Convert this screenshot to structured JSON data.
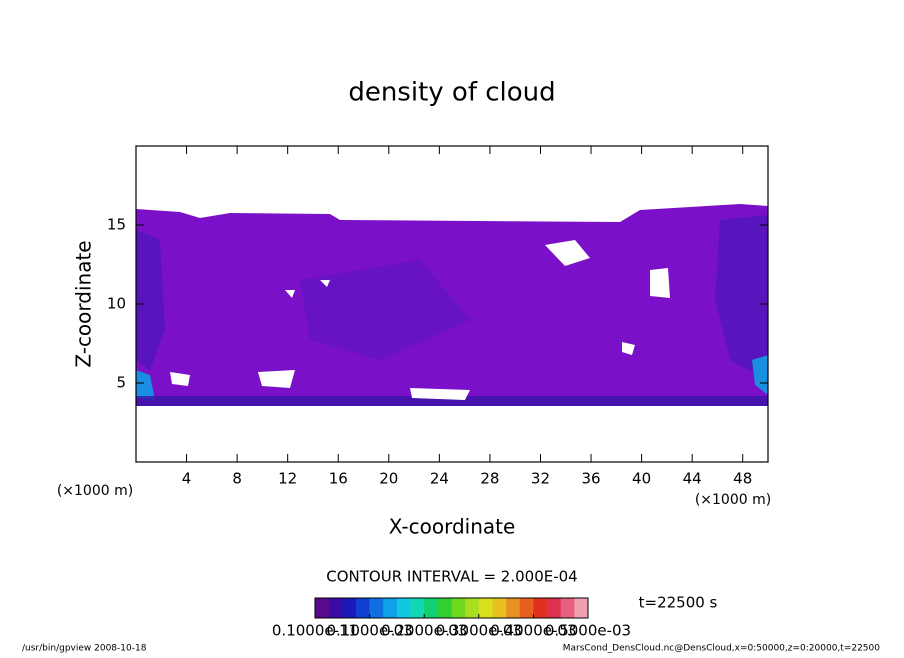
{
  "chart_data": {
    "type": "contour",
    "title": "density of cloud",
    "xlabel": "X-coordinate",
    "ylabel": "Z-coordinate",
    "x_unit": "(×1000 m)",
    "y_unit": "(×1000 m)",
    "xlim": [
      0,
      50
    ],
    "ylim": [
      0,
      20
    ],
    "xticks": [
      4,
      8,
      12,
      16,
      20,
      24,
      28,
      32,
      36,
      40,
      44,
      48
    ],
    "yticks": [
      5,
      10,
      15
    ],
    "contour_interval": "CONTOUR INTERVAL = 2.000E-04",
    "time_label": "t=22500 s",
    "clim": [
      0,
      0.0005
    ],
    "colorbar_ticks": [
      {
        "value": 1e-12,
        "label": "0.1000e-11"
      },
      {
        "value": 0.0001,
        "label": "0.1000e-03"
      },
      {
        "value": 0.0002,
        "label": "0.2000e-03"
      },
      {
        "value": 0.0003,
        "label": "0.3000e-03"
      },
      {
        "value": 0.0004,
        "label": "0.4000e-03"
      },
      {
        "value": 0.0005,
        "label": "0.5000e-03"
      }
    ],
    "colorbar_colors": [
      "#5a0a8c",
      "#3a0ca0",
      "#1a1ab8",
      "#1040d0",
      "#1070e0",
      "#10a0e8",
      "#10c8e0",
      "#10d8b0",
      "#10d070",
      "#30d030",
      "#70d820",
      "#a8e020",
      "#d8e020",
      "#e8c020",
      "#e89020",
      "#e86020",
      "#e03020",
      "#e03050",
      "#e86080",
      "#f0a0b0"
    ],
    "footer_left": "/usr/bin/gpview   2008-10-18",
    "footer_right": "MarsCond_DensCloud.nc@DensCloud,x=0:50000,z=0:20000,t=22500"
  }
}
